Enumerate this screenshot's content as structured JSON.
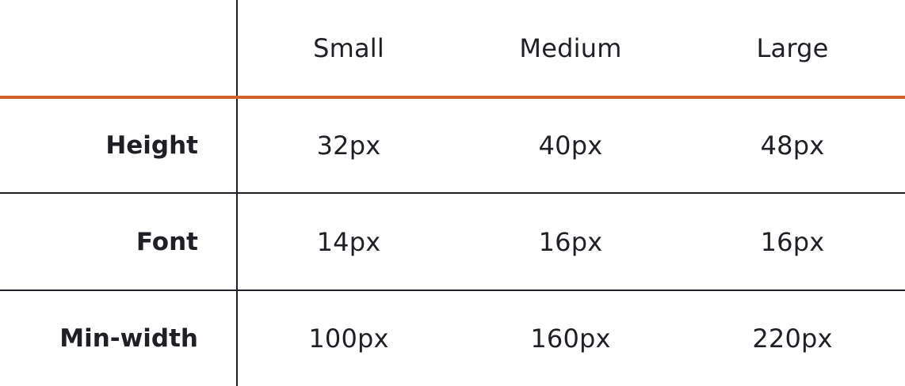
{
  "columns": [
    "Small",
    "Medium",
    "Large"
  ],
  "rows": [
    {
      "label": "Height",
      "values": [
        "32px",
        "40px",
        "48px"
      ]
    },
    {
      "label": "Font",
      "values": [
        "14px",
        "16px",
        "16px"
      ]
    },
    {
      "label": "Min-width",
      "values": [
        "100px",
        "160px",
        "220px"
      ]
    }
  ],
  "colors": {
    "accent": "#d2602a",
    "text": "#1f2026",
    "rule": "#1f2026",
    "background": "#ffffff"
  }
}
